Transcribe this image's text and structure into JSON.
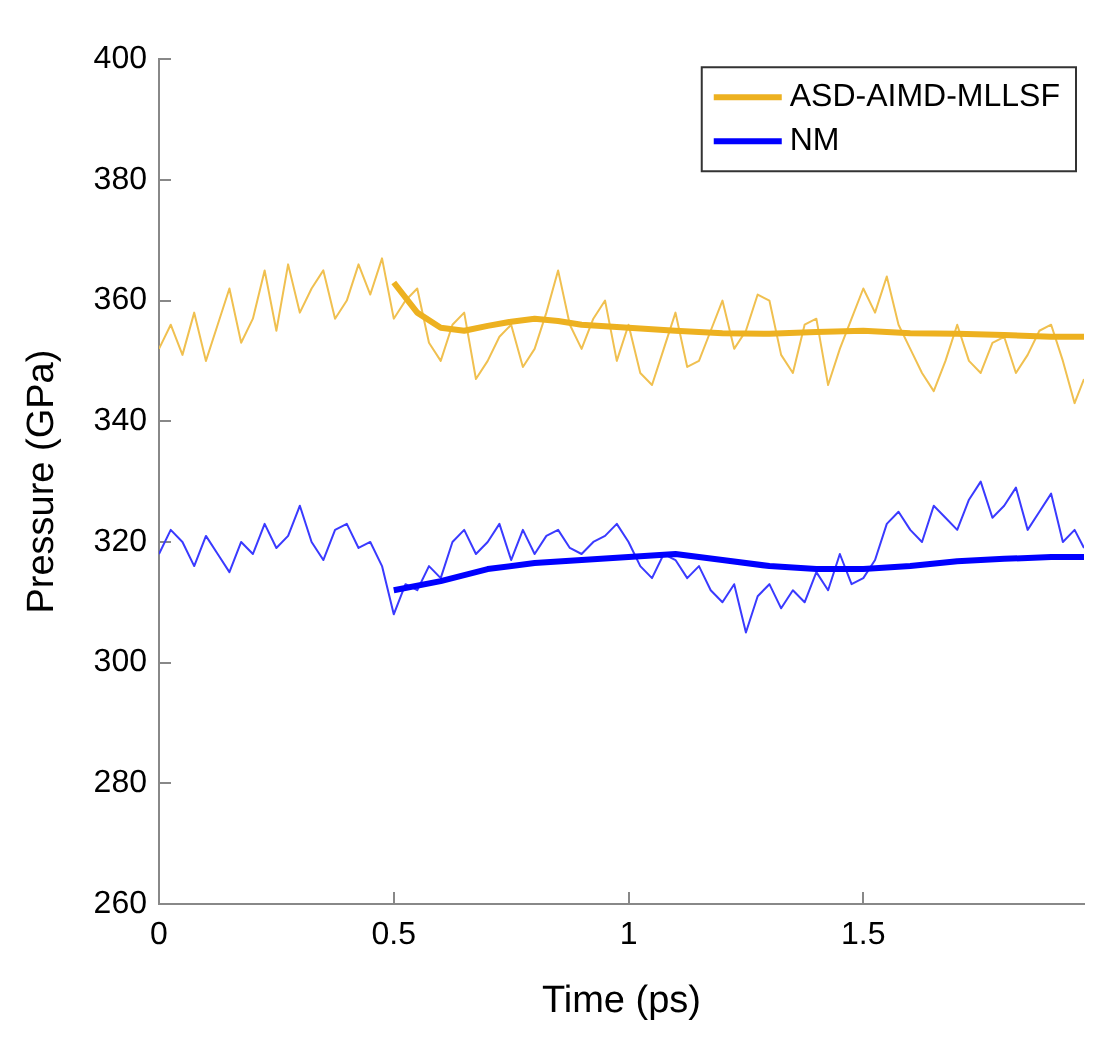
{
  "chart_data": {
    "type": "line",
    "xlabel": "Time (ps)",
    "ylabel": "Pressure (GPa)",
    "xlim": [
      0,
      1.97
    ],
    "xticks": [
      0,
      0.5,
      1,
      1.5
    ],
    "ylim": [
      260,
      400
    ],
    "yticks": [
      260,
      280,
      300,
      320,
      340,
      360,
      380,
      400
    ],
    "grid": false,
    "legend": "top right",
    "marker": "none",
    "line_style": "solid",
    "series": [
      {
        "color": "#f0c050",
        "x": [
          0,
          0.025,
          0.05,
          0.075,
          0.1,
          0.125,
          0.15,
          0.175,
          0.2,
          0.225,
          0.25,
          0.275,
          0.3,
          0.325,
          0.35,
          0.375,
          0.4,
          0.425,
          0.45,
          0.475,
          0.5,
          0.525,
          0.55,
          0.575,
          0.6,
          0.625,
          0.65,
          0.675,
          0.7,
          0.725,
          0.75,
          0.775,
          0.8,
          0.825,
          0.85,
          0.875,
          0.9,
          0.925,
          0.95,
          0.975,
          1.0,
          1.025,
          1.05,
          1.075,
          1.1,
          1.125,
          1.15,
          1.175,
          1.2,
          1.225,
          1.25,
          1.275,
          1.3,
          1.325,
          1.35,
          1.375,
          1.4,
          1.425,
          1.45,
          1.475,
          1.5,
          1.525,
          1.55,
          1.575,
          1.6,
          1.625,
          1.65,
          1.675,
          1.7,
          1.725,
          1.75,
          1.775,
          1.8,
          1.825,
          1.85,
          1.875,
          1.9,
          1.925,
          1.95,
          1.97
        ],
        "values": [
          352,
          356,
          351,
          358,
          350,
          356,
          362,
          353,
          357,
          365,
          355,
          366,
          358,
          362,
          365,
          357,
          360,
          366,
          361,
          367,
          357,
          360,
          362,
          353,
          350,
          356,
          358,
          347,
          350,
          354,
          356,
          349,
          352,
          358,
          365,
          356,
          352,
          357,
          360,
          350,
          356,
          348,
          346,
          352,
          358,
          349,
          350,
          355,
          360,
          352,
          355,
          361,
          360,
          351,
          348,
          356,
          357,
          346,
          352,
          357,
          362,
          358,
          364,
          356,
          352,
          348,
          345,
          350,
          356,
          350,
          348,
          353,
          354,
          348,
          351,
          355,
          356,
          350,
          343,
          347
        ]
      },
      {
        "name": "ASD-AIMD-MLLSF",
        "color": "#edb120",
        "x": [
          0.5,
          0.55,
          0.6,
          0.65,
          0.7,
          0.75,
          0.8,
          0.85,
          0.9,
          1.0,
          1.1,
          1.2,
          1.3,
          1.4,
          1.5,
          1.6,
          1.7,
          1.8,
          1.9,
          1.97
        ],
        "values": [
          363,
          358,
          355.5,
          355,
          355.8,
          356.5,
          357,
          356.6,
          356,
          355.5,
          355,
          354.6,
          354.5,
          354.8,
          355,
          354.6,
          354.5,
          354.3,
          354,
          354
        ]
      },
      {
        "color": "#3a3aff",
        "x": [
          0,
          0.025,
          0.05,
          0.075,
          0.1,
          0.125,
          0.15,
          0.175,
          0.2,
          0.225,
          0.25,
          0.275,
          0.3,
          0.325,
          0.35,
          0.375,
          0.4,
          0.425,
          0.45,
          0.475,
          0.5,
          0.525,
          0.55,
          0.575,
          0.6,
          0.625,
          0.65,
          0.675,
          0.7,
          0.725,
          0.75,
          0.775,
          0.8,
          0.825,
          0.85,
          0.875,
          0.9,
          0.925,
          0.95,
          0.975,
          1.0,
          1.025,
          1.05,
          1.075,
          1.1,
          1.125,
          1.15,
          1.175,
          1.2,
          1.225,
          1.25,
          1.275,
          1.3,
          1.325,
          1.35,
          1.375,
          1.4,
          1.425,
          1.45,
          1.475,
          1.5,
          1.525,
          1.55,
          1.575,
          1.6,
          1.625,
          1.65,
          1.675,
          1.7,
          1.725,
          1.75,
          1.775,
          1.8,
          1.825,
          1.85,
          1.875,
          1.9,
          1.925,
          1.95,
          1.97
        ],
        "values": [
          318,
          322,
          320,
          316,
          321,
          318,
          315,
          320,
          318,
          323,
          319,
          321,
          326,
          320,
          317,
          322,
          323,
          319,
          320,
          316,
          308,
          313,
          312,
          316,
          314,
          320,
          322,
          318,
          320,
          323,
          317,
          322,
          318,
          321,
          322,
          319,
          318,
          320,
          321,
          323,
          320,
          316,
          314,
          318,
          317,
          314,
          316,
          312,
          310,
          313,
          305,
          311,
          313,
          309,
          312,
          310,
          315,
          312,
          318,
          313,
          314,
          317,
          323,
          325,
          322,
          320,
          326,
          324,
          322,
          327,
          330,
          324,
          326,
          329,
          322,
          325,
          328,
          320,
          322,
          319
        ]
      },
      {
        "name": "NM",
        "color": "#0000ff",
        "x": [
          0.5,
          0.6,
          0.7,
          0.8,
          0.9,
          1.0,
          1.1,
          1.2,
          1.3,
          1.4,
          1.5,
          1.6,
          1.7,
          1.8,
          1.9,
          1.97
        ],
        "values": [
          312,
          313.5,
          315.5,
          316.5,
          317,
          317.5,
          318,
          317,
          316,
          315.5,
          315.5,
          316,
          316.8,
          317.2,
          317.5,
          317.5
        ]
      }
    ]
  }
}
